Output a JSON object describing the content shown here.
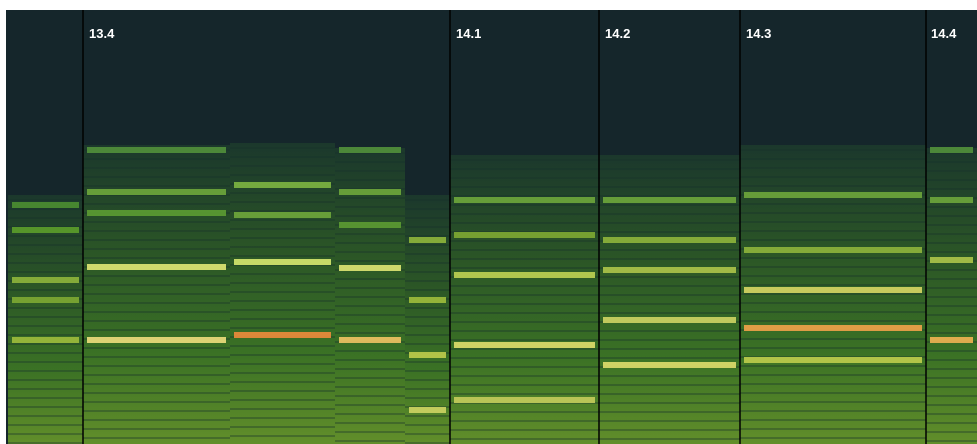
{
  "markers": [
    "13.4",
    "14.1",
    "14.2",
    "14.3",
    "14.4"
  ]
}
